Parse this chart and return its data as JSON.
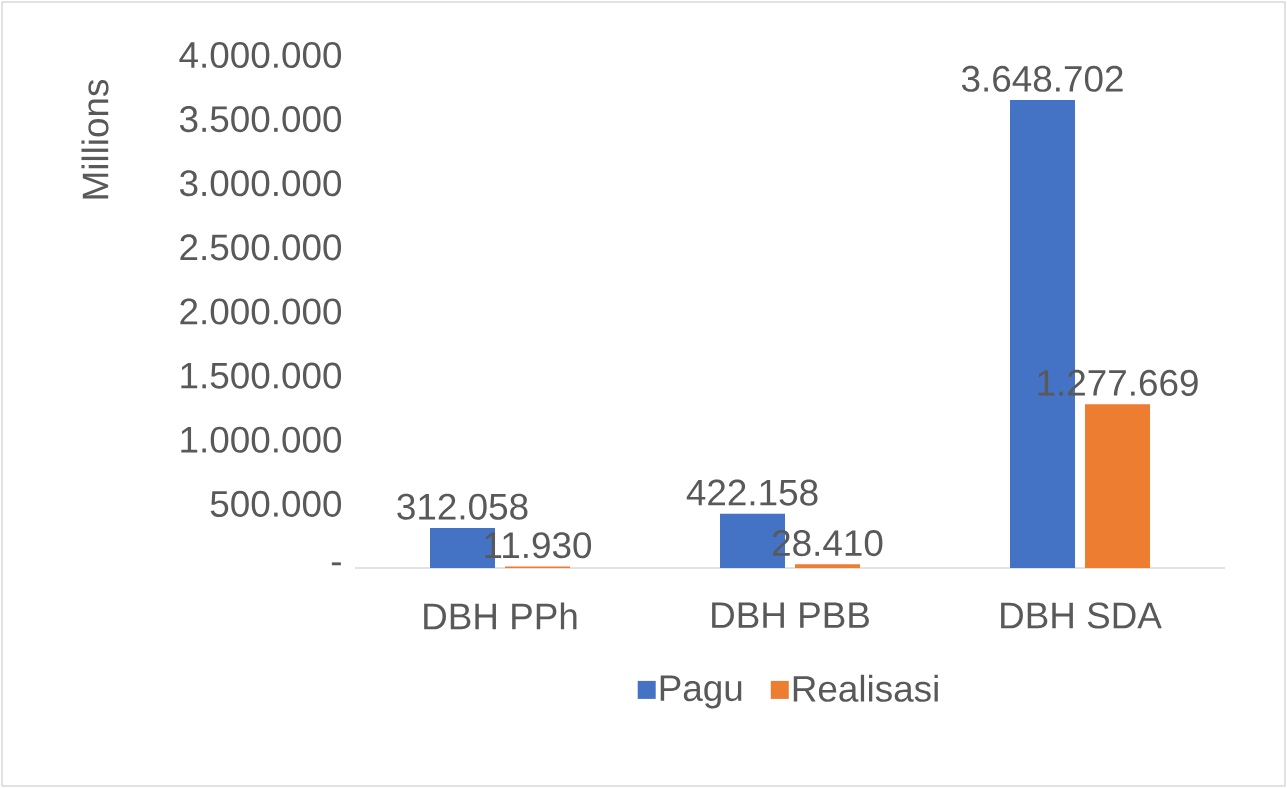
{
  "chart_data": {
    "type": "bar",
    "ylabel": "Millions",
    "categories": [
      "DBH PPh",
      "DBH PBB",
      "DBH SDA"
    ],
    "series": [
      {
        "name": "Pagu",
        "color": "#4472c4",
        "values": [
          312058,
          422158,
          3648702
        ],
        "value_labels": [
          "312.058",
          "422.158",
          "3.648.702"
        ]
      },
      {
        "name": "Realisasi",
        "color": "#ed7d31",
        "values": [
          11930,
          28410,
          1277669
        ],
        "value_labels": [
          "11.930",
          "28.410",
          "1.277.669"
        ]
      }
    ],
    "ylim": [
      0,
      4000000
    ],
    "yticks": [
      {
        "value": 0,
        "label": "-"
      },
      {
        "value": 500000,
        "label": "500.000"
      },
      {
        "value": 1000000,
        "label": "1.000.000"
      },
      {
        "value": 1500000,
        "label": "1.500.000"
      },
      {
        "value": 2000000,
        "label": "2.000.000"
      },
      {
        "value": 2500000,
        "label": "2.500.000"
      },
      {
        "value": 3000000,
        "label": "3.000.000"
      },
      {
        "value": 3500000,
        "label": "3.500.000"
      },
      {
        "value": 4000000,
        "label": "4.000.000"
      }
    ],
    "grid": false,
    "legend": "bottom"
  }
}
